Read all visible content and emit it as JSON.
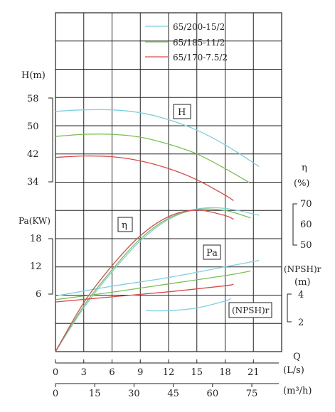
{
  "chart_data": {
    "type": "line",
    "legend": {
      "placement": "top-right",
      "entries": [
        {
          "label": "65/200-15/2",
          "color": "#7ecfe0"
        },
        {
          "label": "65/185-11/2",
          "color": "#7bbf52"
        },
        {
          "label": "65/170-7.5/2",
          "color": "#d94a4a"
        }
      ]
    },
    "x_axis": {
      "label": "Q",
      "unit": "(L/s)",
      "ticks": [
        "0",
        "3",
        "6",
        "9",
        "12",
        "15",
        "18",
        "21"
      ],
      "range": [
        0,
        24
      ]
    },
    "x2_axis": {
      "unit": "(m³/h)",
      "ticks": [
        "0",
        "15",
        "30",
        "45",
        "60",
        "75"
      ],
      "values": [
        0,
        15,
        30,
        45,
        60,
        75
      ]
    },
    "y_axes": {
      "head": {
        "label": "H(m)",
        "ticks": [
          "34",
          "42",
          "50",
          "58"
        ],
        "values": [
          34,
          42,
          50,
          58
        ]
      },
      "power": {
        "label": "Pa(KW)",
        "ticks": [
          "6",
          "12",
          "18"
        ],
        "values": [
          6,
          12,
          18
        ]
      },
      "efficiency": {
        "label": "η",
        "unit": "(%)",
        "ticks": [
          "50",
          "60",
          "70"
        ],
        "values": [
          50,
          60,
          70
        ]
      },
      "npsh": {
        "label": "(NPSH)r",
        "unit": "(m)",
        "ticks": [
          "2",
          "4"
        ],
        "values": [
          2,
          4
        ]
      }
    },
    "annotations": {
      "head": "H",
      "efficiency": "η",
      "power": "Pa",
      "npsh": "(NPSH)r"
    },
    "series": [
      {
        "name": "65/200-15/2",
        "color": "#7ecfe0",
        "head": {
          "x": [
            0,
            3,
            6,
            9,
            12,
            15,
            18,
            21.6
          ],
          "y": [
            54.2,
            54.6,
            54.6,
            53.8,
            51.8,
            48.8,
            44.6,
            38.4
          ]
        },
        "efficiency": {
          "x": [
            0,
            3,
            6,
            9,
            12,
            15,
            18,
            21.6
          ],
          "y": [
            0,
            19.5,
            37,
            52,
            62.5,
            67.5,
            67.8,
            64.5
          ]
        },
        "power": {
          "x": [
            0,
            6,
            12,
            18,
            21.6
          ],
          "y": [
            5.6,
            7.7,
            9.6,
            11.9,
            13.3
          ]
        },
        "npsh": {
          "x": [
            9.6,
            12,
            15,
            18,
            18.6
          ],
          "y": [
            2.8,
            2.8,
            3.0,
            3.5,
            3.7
          ]
        }
      },
      {
        "name": "65/185-11/2",
        "color": "#7bbf52",
        "head": {
          "x": [
            0,
            3,
            6,
            9,
            12,
            15,
            18,
            20.7
          ],
          "y": [
            47.0,
            47.6,
            47.6,
            46.8,
            44.8,
            42.0,
            37.8,
            33.6
          ]
        },
        "efficiency": {
          "x": [
            0,
            3,
            6,
            9,
            12,
            15,
            18,
            20.7
          ],
          "y": [
            0,
            20.5,
            38,
            53,
            63,
            67.2,
            66.8,
            63.2
          ]
        },
        "power": {
          "x": [
            0,
            6,
            12,
            18,
            20.7
          ],
          "y": [
            4.8,
            6.4,
            8.2,
            10.0,
            11.0
          ]
        }
      },
      {
        "name": "65/170-7.5/2",
        "color": "#d94a4a",
        "head": {
          "x": [
            0,
            3,
            6,
            9,
            12,
            15,
            18,
            18.9
          ],
          "y": [
            41.0,
            41.4,
            41.2,
            40.0,
            37.8,
            34.6,
            30.2,
            28.6
          ]
        },
        "efficiency": {
          "x": [
            0,
            3,
            6,
            9,
            12,
            15,
            18,
            18.9
          ],
          "y": [
            0,
            22,
            40,
            54.5,
            63.8,
            67,
            64.3,
            62.5
          ]
        },
        "power": {
          "x": [
            0,
            6,
            12,
            18,
            18.9
          ],
          "y": [
            4.3,
            5.4,
            6.5,
            7.8,
            8.2
          ]
        }
      }
    ]
  }
}
